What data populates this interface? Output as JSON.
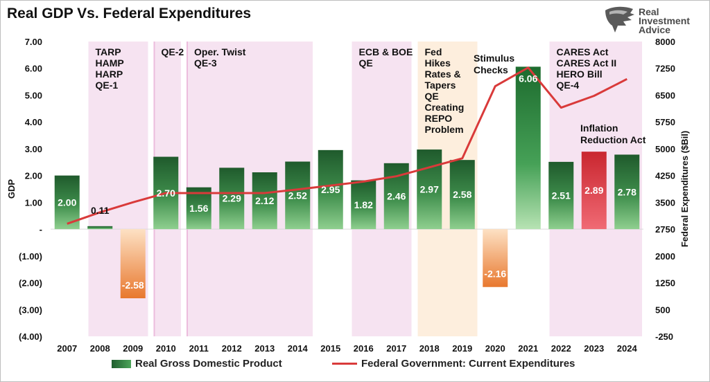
{
  "title": "Real GDP Vs. Federal Expenditures",
  "brand": {
    "lines": [
      "Real",
      "Investment",
      "Advice"
    ],
    "logo_icon": "eagle-head-icon"
  },
  "chart_data": {
    "type": "bar",
    "categories": [
      "2007",
      "2008",
      "2009",
      "2010",
      "2011",
      "2012",
      "2013",
      "2014",
      "2015",
      "2016",
      "2017",
      "2018",
      "2019",
      "2020",
      "2021",
      "2022",
      "2023",
      "2024"
    ],
    "series": [
      {
        "name": "Real Gross Domestic Product",
        "type": "bar",
        "axis": "left",
        "values": [
          2.0,
          0.11,
          -2.58,
          2.7,
          1.56,
          2.29,
          2.12,
          2.52,
          2.95,
          1.82,
          2.46,
          2.97,
          2.58,
          -2.16,
          6.06,
          2.51,
          2.89,
          2.78
        ],
        "labels": [
          "2.00",
          "0.11",
          "-2.58",
          "2.70",
          "1.56",
          "2.29",
          "2.12",
          "2.52",
          "2.95",
          "1.82",
          "2.46",
          "2.97",
          "2.58",
          "-2.16",
          "6.06",
          "2.51",
          "2.89",
          "2.78"
        ],
        "highlight": {
          "2023": "#e0353f"
        }
      },
      {
        "name": "Federal Government: Current Expenditures",
        "type": "line",
        "axis": "right",
        "color": "#d93a3a",
        "values": [
          2900,
          3220,
          3500,
          3760,
          3760,
          3760,
          3760,
          3860,
          3970,
          4080,
          4230,
          4480,
          4730,
          6750,
          7270,
          6150,
          6480,
          6950
        ]
      }
    ],
    "ylabel": "GDP",
    "ylabel_right": "Federal Expenditures ($Bil)",
    "ylim": [
      -4,
      7
    ],
    "ylim_right": [
      -250,
      8000
    ],
    "yticks_left": [
      "7.00",
      "6.00",
      "5.00",
      "4.00",
      "3.00",
      "2.00",
      "1.00",
      "-",
      "(1.00)",
      "(2.00)",
      "(3.00)",
      "(4.00)"
    ],
    "yticks_right": [
      "8000",
      "7250",
      "6500",
      "5750",
      "5000",
      "4250",
      "3500",
      "2750",
      "2000",
      "1250",
      "500",
      "-250"
    ],
    "grid": false,
    "legend": "bottom",
    "shaded_periods": [
      {
        "from": "2008",
        "to": "2009",
        "color": "#f6e3f1",
        "label": [
          "TARP",
          "HAMP",
          "HARP",
          "QE-1"
        ]
      },
      {
        "from": "2010",
        "to": "2010",
        "color": "#f6e3f1",
        "label": [
          "QE-2"
        ]
      },
      {
        "from": "2011",
        "to": "2014",
        "color": "#f6e3f1",
        "label": [
          "Oper. Twist",
          "QE-3"
        ]
      },
      {
        "from": "2016",
        "to": "2017",
        "color": "#f6e3f1",
        "label": [
          "ECB & BOE",
          "QE"
        ]
      },
      {
        "from": "2018",
        "to": "2019",
        "color": "#fdeedd",
        "label": [
          "Fed",
          "Hikes",
          "Rates &",
          "Tapers",
          "QE",
          "Creating",
          "REPO",
          "Problem"
        ]
      },
      {
        "from": "2022",
        "to": "2024",
        "color": "#f6e3f1",
        "label": [
          "CARES Act",
          "CARES Act II",
          "HERO Bill",
          "QE-4"
        ]
      }
    ],
    "annotations": [
      {
        "at": "2020",
        "label": [
          "Stimulus",
          "Checks"
        ]
      },
      {
        "at": "2023",
        "label": [
          "Inflation",
          "Reduction Act"
        ]
      }
    ]
  }
}
